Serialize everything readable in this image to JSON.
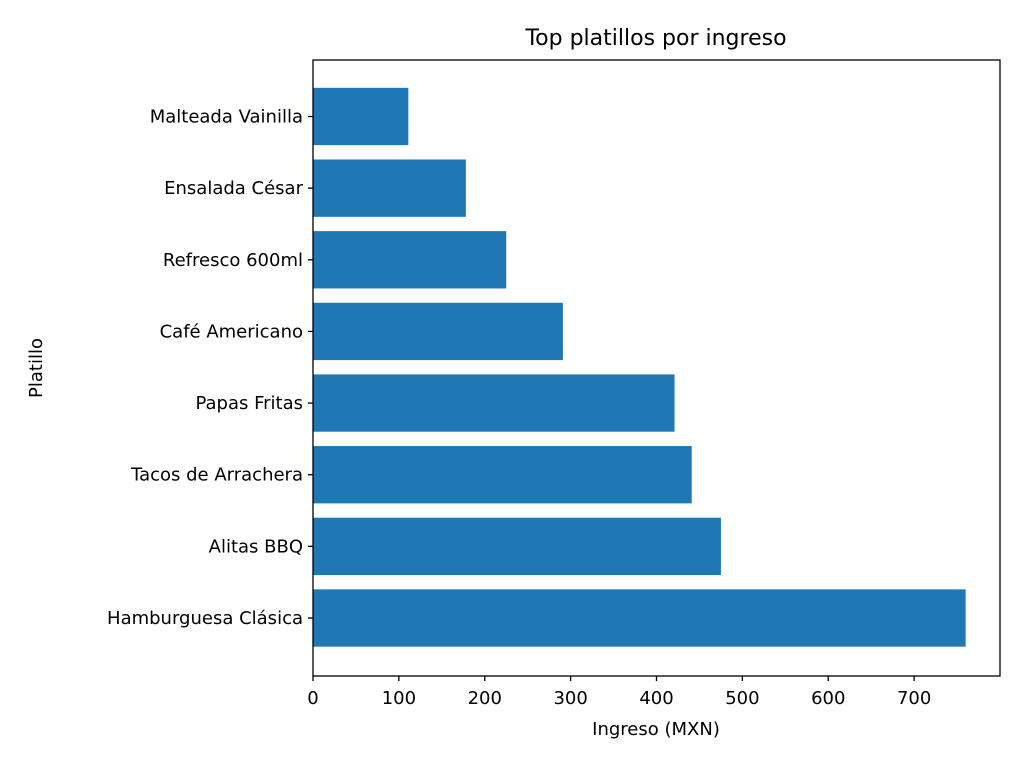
{
  "chart_data": {
    "type": "bar",
    "orientation": "horizontal",
    "title": "Top platillos por ingreso",
    "xlabel": "Ingreso (MXN)",
    "ylabel": "Platillo",
    "categories": [
      "Hamburguesa Clásica",
      "Alitas BBQ",
      "Tacos de Arrachera",
      "Papas Fritas",
      "Café Americano",
      "Refresco 600ml",
      "Ensalada César",
      "Malteada Vainilla"
    ],
    "values": [
      760,
      475,
      441,
      421,
      291,
      225,
      178,
      111
    ],
    "xlim": [
      0,
      800
    ],
    "xticks": [
      "0",
      "100",
      "200",
      "300",
      "400",
      "500",
      "600",
      "700"
    ],
    "grid": false,
    "bar_color": "#1f77b4"
  }
}
